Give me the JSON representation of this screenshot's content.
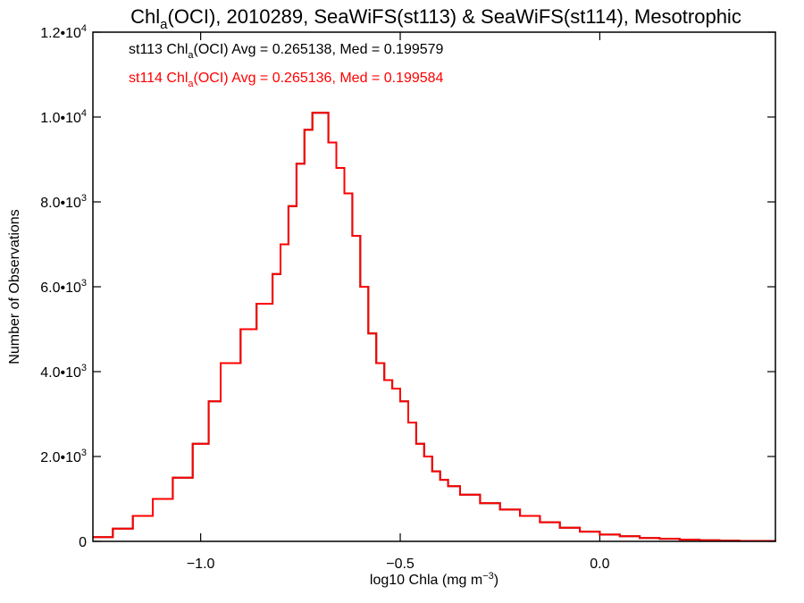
{
  "chart_data": {
    "type": "line",
    "title": {
      "pre": "Chl",
      "sub": "a",
      "post": "(OCI), 2010289, SeaWiFS(st113) & SeaWiFS(st114), Mesotrophic"
    },
    "xlabel": {
      "pre": "log10 Chla (mg m",
      "sup": "−3",
      "post": ")"
    },
    "ylabel": "Number of Observations",
    "xlim": [
      -1.27,
      0.44
    ],
    "ylim": [
      0,
      12000
    ],
    "xticks": [
      {
        "value": -1.0,
        "label": "−1.0"
      },
      {
        "value": -0.5,
        "label": "−0.5"
      },
      {
        "value": 0.0,
        "label": "0.0"
      }
    ],
    "yticks": [
      {
        "value": 0,
        "mant": "0",
        "exp": ""
      },
      {
        "value": 2000,
        "mant": "2.0•10",
        "exp": "3"
      },
      {
        "value": 4000,
        "mant": "4.0•10",
        "exp": "3"
      },
      {
        "value": 6000,
        "mant": "6.0•10",
        "exp": "3"
      },
      {
        "value": 8000,
        "mant": "8.0•10",
        "exp": "3"
      },
      {
        "value": 10000,
        "mant": "1.0•10",
        "exp": "4"
      },
      {
        "value": 12000,
        "mant": "1.2•10",
        "exp": "4"
      }
    ],
    "annotations": [
      {
        "color": "#000000",
        "pre": "st113 Chl",
        "sub": "a",
        "post": "(OCI) Avg = 0.265138, Med = 0.199579"
      },
      {
        "color": "#ff0000",
        "pre": "st114 Chl",
        "sub": "a",
        "post": "(OCI) Avg = 0.265136, Med = 0.199584"
      }
    ],
    "series": [
      {
        "color": "#000000",
        "x": [
          -1.27,
          -1.22,
          -1.17,
          -1.12,
          -1.07,
          -1.02,
          -0.98,
          -0.95,
          -0.9,
          -0.86,
          -0.82,
          -0.8,
          -0.78,
          -0.76,
          -0.74,
          -0.72,
          -0.7,
          -0.68,
          -0.66,
          -0.64,
          -0.62,
          -0.6,
          -0.58,
          -0.56,
          -0.54,
          -0.52,
          -0.5,
          -0.48,
          -0.46,
          -0.44,
          -0.42,
          -0.4,
          -0.38,
          -0.35,
          -0.3,
          -0.25,
          -0.2,
          -0.15,
          -0.1,
          -0.05,
          0.0,
          0.05,
          0.1,
          0.15,
          0.2,
          0.25,
          0.3,
          0.35,
          0.44
        ],
        "y": [
          100,
          300,
          600,
          1000,
          1500,
          2300,
          3300,
          4200,
          5000,
          5600,
          6300,
          7000,
          7900,
          8900,
          9700,
          10100,
          10100,
          9400,
          8800,
          8200,
          7200,
          6000,
          4900,
          4200,
          3800,
          3600,
          3300,
          2800,
          2300,
          2000,
          1650,
          1450,
          1300,
          1100,
          900,
          750,
          600,
          450,
          320,
          230,
          160,
          120,
          80,
          60,
          40,
          25,
          15,
          10,
          5
        ]
      },
      {
        "color": "#ff0000",
        "x": [
          -1.27,
          -1.22,
          -1.17,
          -1.12,
          -1.07,
          -1.02,
          -0.98,
          -0.95,
          -0.9,
          -0.86,
          -0.82,
          -0.8,
          -0.78,
          -0.76,
          -0.74,
          -0.72,
          -0.7,
          -0.68,
          -0.66,
          -0.64,
          -0.62,
          -0.6,
          -0.58,
          -0.56,
          -0.54,
          -0.52,
          -0.5,
          -0.48,
          -0.46,
          -0.44,
          -0.42,
          -0.4,
          -0.38,
          -0.35,
          -0.3,
          -0.25,
          -0.2,
          -0.15,
          -0.1,
          -0.05,
          0.0,
          0.05,
          0.1,
          0.15,
          0.2,
          0.25,
          0.3,
          0.35,
          0.44
        ],
        "y": [
          100,
          300,
          600,
          1000,
          1500,
          2300,
          3300,
          4200,
          5000,
          5600,
          6300,
          7000,
          7900,
          8900,
          9700,
          10100,
          10100,
          9400,
          8800,
          8200,
          7200,
          6000,
          4900,
          4200,
          3800,
          3600,
          3300,
          2800,
          2300,
          2000,
          1650,
          1450,
          1300,
          1100,
          900,
          750,
          600,
          450,
          320,
          230,
          160,
          120,
          80,
          60,
          40,
          25,
          15,
          10,
          5
        ]
      }
    ]
  }
}
